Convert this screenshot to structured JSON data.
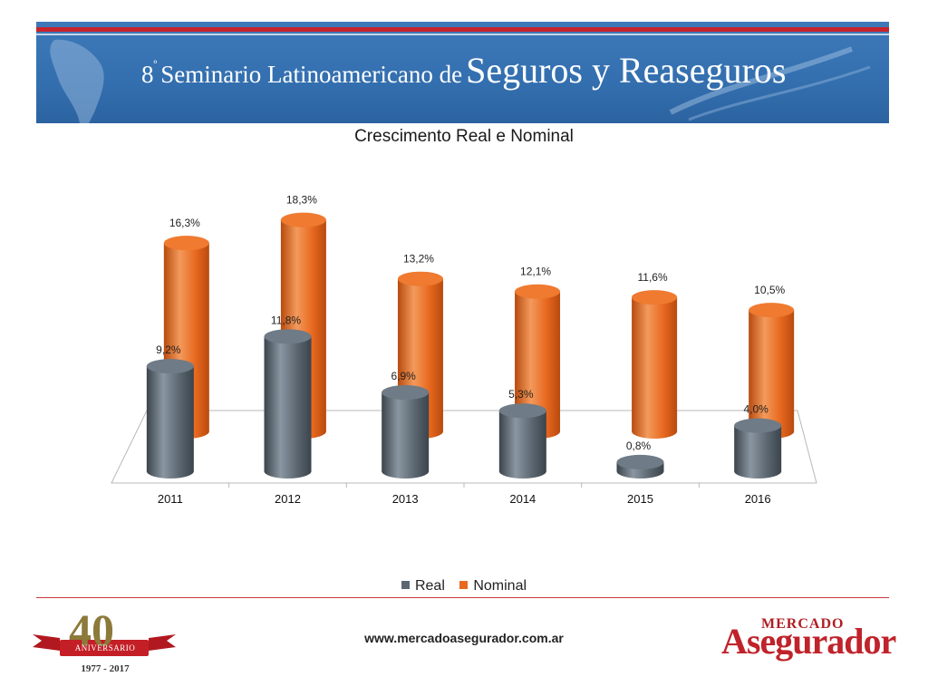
{
  "banner": {
    "ordinal": "8",
    "ordinal_mark": "º",
    "title_small": "Seminario Latinoamericano de",
    "title_big": "Seguros y Reaseguros"
  },
  "colors": {
    "real": "#5b6670",
    "nominal": "#e8681f",
    "accent": "#c8232c"
  },
  "chart_data": {
    "type": "bar",
    "title": "Crescimento Real e Nominal",
    "categories": [
      "2011",
      "2012",
      "2013",
      "2014",
      "2015",
      "2016"
    ],
    "series": [
      {
        "name": "Real",
        "values": [
          9.2,
          11.8,
          6.9,
          5.3,
          0.8,
          4.0
        ],
        "labels": [
          "9,2%",
          "11,8%",
          "6,9%",
          "5,3%",
          "0,8%",
          "4,0%"
        ]
      },
      {
        "name": "Nominal",
        "values": [
          16.3,
          18.3,
          13.2,
          12.1,
          11.6,
          10.5
        ],
        "labels": [
          "16,3%",
          "18,3%",
          "13,2%",
          "12,1%",
          "11,6%",
          "10,5%"
        ]
      }
    ],
    "ylim": [
      0,
      20
    ],
    "legend": "bottom",
    "grid": false
  },
  "footer": {
    "url": "www.mercadoasegurador.com.ar",
    "anniversary_number": "40",
    "anniversary_text": "ANIVERSARIO",
    "anniversary_years": "1977 - 2017",
    "brand_top": "MERCADO",
    "brand_bottom": "Asegurador"
  }
}
